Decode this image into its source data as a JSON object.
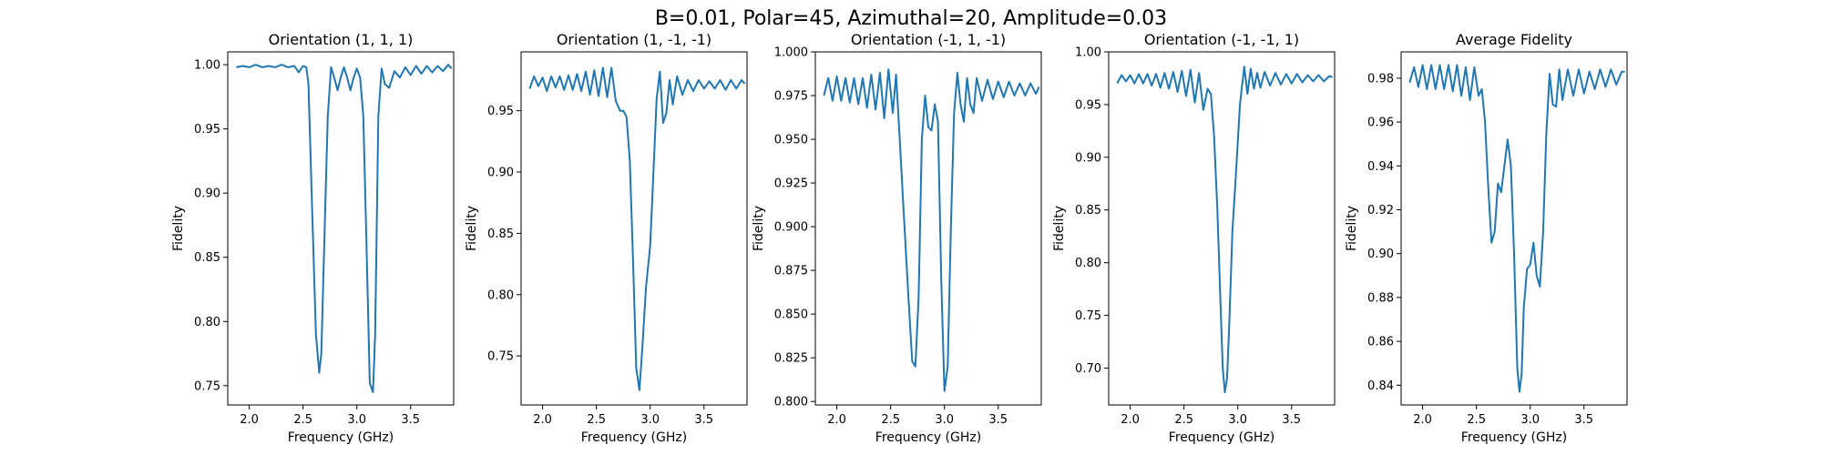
{
  "figure": {
    "title": "B=0.01, Polar=45, Azimuthal=20, Amplitude=0.03"
  },
  "chart_data": [
    {
      "type": "line",
      "title": "Orientation (1, 1, 1)",
      "xlabel": "Frequency (GHz)",
      "ylabel": "Fidelity",
      "xlim": [
        1.8,
        3.9
      ],
      "ylim": [
        0.735,
        1.01
      ],
      "xticks": [
        2.0,
        2.5,
        3.0,
        3.5
      ],
      "xtick_labels": [
        "2.0",
        "2.5",
        "3.0",
        "3.5"
      ],
      "yticks": [
        0.75,
        0.8,
        0.85,
        0.9,
        0.95,
        1.0
      ],
      "ytick_labels": [
        "0.75",
        "0.80",
        "0.85",
        "0.90",
        "0.95",
        "1.00"
      ],
      "grid": false,
      "series": [
        {
          "color": "#1f77b4",
          "x": [
            1.88,
            1.94,
            2.0,
            2.06,
            2.12,
            2.18,
            2.24,
            2.3,
            2.36,
            2.42,
            2.46,
            2.5,
            2.53,
            2.55,
            2.58,
            2.62,
            2.65,
            2.67,
            2.7,
            2.73,
            2.76,
            2.79,
            2.82,
            2.85,
            2.88,
            2.91,
            2.94,
            2.97,
            3.0,
            3.03,
            3.06,
            3.09,
            3.12,
            3.15,
            3.17,
            3.2,
            3.23,
            3.26,
            3.3,
            3.35,
            3.4,
            3.45,
            3.5,
            3.55,
            3.6,
            3.65,
            3.7,
            3.75,
            3.8,
            3.85,
            3.88
          ],
          "y": [
            0.998,
            0.999,
            0.998,
            1.0,
            0.998,
            0.999,
            0.998,
            1.0,
            0.998,
            0.999,
            0.994,
            0.999,
            0.998,
            0.985,
            0.9,
            0.79,
            0.76,
            0.775,
            0.87,
            0.96,
            0.998,
            0.99,
            0.98,
            0.99,
            0.998,
            0.99,
            0.98,
            0.99,
            0.997,
            0.99,
            0.96,
            0.86,
            0.752,
            0.745,
            0.79,
            0.96,
            0.997,
            0.985,
            0.982,
            0.995,
            0.99,
            0.998,
            0.992,
            0.999,
            0.993,
            0.999,
            0.994,
            0.999,
            0.995,
            1.0,
            0.997
          ]
        }
      ]
    },
    {
      "type": "line",
      "title": "Orientation (1, -1, -1)",
      "xlabel": "Frequency (GHz)",
      "ylabel": "Fidelity",
      "xlim": [
        1.8,
        3.9
      ],
      "ylim": [
        0.71,
        0.998
      ],
      "xticks": [
        2.0,
        2.5,
        3.0,
        3.5
      ],
      "xtick_labels": [
        "2.0",
        "2.5",
        "3.0",
        "3.5"
      ],
      "yticks": [
        0.75,
        0.8,
        0.85,
        0.9,
        0.95
      ],
      "ytick_labels": [
        "0.75",
        "0.80",
        "0.85",
        "0.90",
        "0.95"
      ],
      "grid": false,
      "series": [
        {
          "color": "#1f77b4",
          "x": [
            1.88,
            1.92,
            1.96,
            2.0,
            2.04,
            2.08,
            2.12,
            2.16,
            2.2,
            2.24,
            2.28,
            2.32,
            2.36,
            2.4,
            2.44,
            2.48,
            2.52,
            2.56,
            2.6,
            2.64,
            2.68,
            2.72,
            2.75,
            2.78,
            2.81,
            2.84,
            2.87,
            2.9,
            2.93,
            2.96,
            3.0,
            3.03,
            3.06,
            3.09,
            3.12,
            3.15,
            3.18,
            3.21,
            3.25,
            3.3,
            3.35,
            3.4,
            3.45,
            3.5,
            3.55,
            3.6,
            3.65,
            3.7,
            3.75,
            3.8,
            3.85,
            3.88
          ],
          "y": [
            0.968,
            0.978,
            0.97,
            0.977,
            0.966,
            0.978,
            0.969,
            0.978,
            0.967,
            0.979,
            0.967,
            0.98,
            0.966,
            0.982,
            0.963,
            0.983,
            0.962,
            0.985,
            0.961,
            0.985,
            0.958,
            0.95,
            0.95,
            0.945,
            0.91,
            0.83,
            0.74,
            0.722,
            0.76,
            0.805,
            0.84,
            0.9,
            0.96,
            0.982,
            0.94,
            0.948,
            0.975,
            0.955,
            0.978,
            0.963,
            0.975,
            0.966,
            0.975,
            0.968,
            0.974,
            0.968,
            0.975,
            0.967,
            0.975,
            0.968,
            0.975,
            0.972
          ]
        }
      ]
    },
    {
      "type": "line",
      "title": "Orientation (-1, 1, -1)",
      "xlabel": "Frequency (GHz)",
      "ylabel": "Fidelity",
      "xlim": [
        1.8,
        3.9
      ],
      "ylim": [
        0.798,
        1.0
      ],
      "xticks": [
        2.0,
        2.5,
        3.0,
        3.5
      ],
      "xtick_labels": [
        "2.0",
        "2.5",
        "3.0",
        "3.5"
      ],
      "yticks": [
        0.8,
        0.825,
        0.85,
        0.875,
        0.9,
        0.925,
        0.95,
        0.975,
        1.0
      ],
      "ytick_labels": [
        "0.800",
        "0.825",
        "0.850",
        "0.875",
        "0.900",
        "0.925",
        "0.950",
        "0.975",
        "1.000"
      ],
      "grid": false,
      "series": [
        {
          "color": "#1f77b4",
          "x": [
            1.88,
            1.92,
            1.96,
            2.0,
            2.04,
            2.08,
            2.12,
            2.16,
            2.2,
            2.24,
            2.28,
            2.32,
            2.36,
            2.4,
            2.44,
            2.48,
            2.52,
            2.55,
            2.58,
            2.62,
            2.66,
            2.7,
            2.73,
            2.76,
            2.79,
            2.82,
            2.85,
            2.88,
            2.91,
            2.94,
            2.97,
            3.0,
            3.03,
            3.06,
            3.09,
            3.12,
            3.15,
            3.18,
            3.21,
            3.24,
            3.27,
            3.3,
            3.35,
            3.4,
            3.45,
            3.5,
            3.55,
            3.6,
            3.65,
            3.7,
            3.75,
            3.8,
            3.85,
            3.88
          ],
          "y": [
            0.975,
            0.985,
            0.972,
            0.986,
            0.972,
            0.985,
            0.971,
            0.985,
            0.97,
            0.985,
            0.968,
            0.987,
            0.967,
            0.988,
            0.962,
            0.99,
            0.965,
            0.987,
            0.955,
            0.91,
            0.865,
            0.823,
            0.82,
            0.86,
            0.95,
            0.975,
            0.957,
            0.955,
            0.97,
            0.96,
            0.87,
            0.806,
            0.82,
            0.9,
            0.965,
            0.988,
            0.97,
            0.96,
            0.985,
            0.97,
            0.965,
            0.985,
            0.972,
            0.984,
            0.973,
            0.983,
            0.974,
            0.983,
            0.975,
            0.982,
            0.975,
            0.982,
            0.976,
            0.98
          ]
        }
      ]
    },
    {
      "type": "line",
      "title": "Orientation (-1, -1, 1)",
      "xlabel": "Frequency (GHz)",
      "ylabel": "Fidelity",
      "xlim": [
        1.8,
        3.9
      ],
      "ylim": [
        0.665,
        1.0
      ],
      "xticks": [
        2.0,
        2.5,
        3.0,
        3.5
      ],
      "xtick_labels": [
        "2.0",
        "2.5",
        "3.0",
        "3.5"
      ],
      "yticks": [
        0.7,
        0.75,
        0.8,
        0.85,
        0.9,
        0.95,
        1.0
      ],
      "ytick_labels": [
        "0.70",
        "0.75",
        "0.80",
        "0.85",
        "0.90",
        "0.95",
        "1.00"
      ],
      "grid": false,
      "series": [
        {
          "color": "#1f77b4",
          "x": [
            1.88,
            1.92,
            1.96,
            2.0,
            2.04,
            2.08,
            2.12,
            2.16,
            2.2,
            2.24,
            2.28,
            2.32,
            2.36,
            2.4,
            2.44,
            2.48,
            2.52,
            2.56,
            2.6,
            2.64,
            2.68,
            2.72,
            2.75,
            2.78,
            2.81,
            2.84,
            2.86,
            2.88,
            2.9,
            2.92,
            2.95,
            2.98,
            3.02,
            3.06,
            3.09,
            3.12,
            3.15,
            3.18,
            3.21,
            3.25,
            3.3,
            3.35,
            3.4,
            3.45,
            3.5,
            3.55,
            3.6,
            3.65,
            3.7,
            3.75,
            3.8,
            3.85,
            3.88
          ],
          "y": [
            0.97,
            0.978,
            0.972,
            0.978,
            0.97,
            0.979,
            0.97,
            0.979,
            0.968,
            0.979,
            0.966,
            0.98,
            0.965,
            0.981,
            0.962,
            0.982,
            0.958,
            0.983,
            0.952,
            0.98,
            0.945,
            0.965,
            0.96,
            0.92,
            0.85,
            0.76,
            0.7,
            0.677,
            0.69,
            0.74,
            0.83,
            0.88,
            0.95,
            0.986,
            0.96,
            0.984,
            0.965,
            0.98,
            0.966,
            0.981,
            0.968,
            0.98,
            0.969,
            0.979,
            0.97,
            0.979,
            0.971,
            0.978,
            0.972,
            0.978,
            0.972,
            0.977,
            0.976
          ]
        }
      ]
    },
    {
      "type": "line",
      "title": "Average Fidelity",
      "xlabel": "Frequency (GHz)",
      "ylabel": "Fidelity",
      "xlim": [
        1.8,
        3.9
      ],
      "ylim": [
        0.831,
        0.992
      ],
      "xticks": [
        2.0,
        2.5,
        3.0,
        3.5
      ],
      "xtick_labels": [
        "2.0",
        "2.5",
        "3.0",
        "3.5"
      ],
      "yticks": [
        0.84,
        0.86,
        0.88,
        0.9,
        0.92,
        0.94,
        0.96,
        0.98
      ],
      "ytick_labels": [
        "0.84",
        "0.86",
        "0.88",
        "0.90",
        "0.92",
        "0.94",
        "0.96",
        "0.98"
      ],
      "grid": false,
      "series": [
        {
          "color": "#1f77b4",
          "x": [
            1.88,
            1.92,
            1.96,
            2.0,
            2.04,
            2.08,
            2.12,
            2.16,
            2.2,
            2.24,
            2.28,
            2.32,
            2.36,
            2.4,
            2.44,
            2.48,
            2.52,
            2.55,
            2.58,
            2.61,
            2.64,
            2.67,
            2.7,
            2.73,
            2.76,
            2.79,
            2.82,
            2.85,
            2.88,
            2.9,
            2.92,
            2.94,
            2.97,
            3.0,
            3.03,
            3.06,
            3.09,
            3.12,
            3.15,
            3.18,
            3.21,
            3.24,
            3.27,
            3.3,
            3.35,
            3.4,
            3.45,
            3.5,
            3.55,
            3.6,
            3.65,
            3.7,
            3.75,
            3.8,
            3.85,
            3.88
          ],
          "y": [
            0.978,
            0.985,
            0.976,
            0.986,
            0.975,
            0.986,
            0.975,
            0.986,
            0.975,
            0.986,
            0.974,
            0.986,
            0.972,
            0.985,
            0.97,
            0.985,
            0.972,
            0.975,
            0.96,
            0.93,
            0.905,
            0.91,
            0.932,
            0.928,
            0.94,
            0.952,
            0.94,
            0.9,
            0.848,
            0.837,
            0.845,
            0.875,
            0.893,
            0.895,
            0.905,
            0.89,
            0.885,
            0.91,
            0.955,
            0.982,
            0.968,
            0.967,
            0.984,
            0.97,
            0.984,
            0.972,
            0.984,
            0.973,
            0.983,
            0.975,
            0.984,
            0.976,
            0.984,
            0.977,
            0.983,
            0.983
          ]
        }
      ]
    }
  ]
}
